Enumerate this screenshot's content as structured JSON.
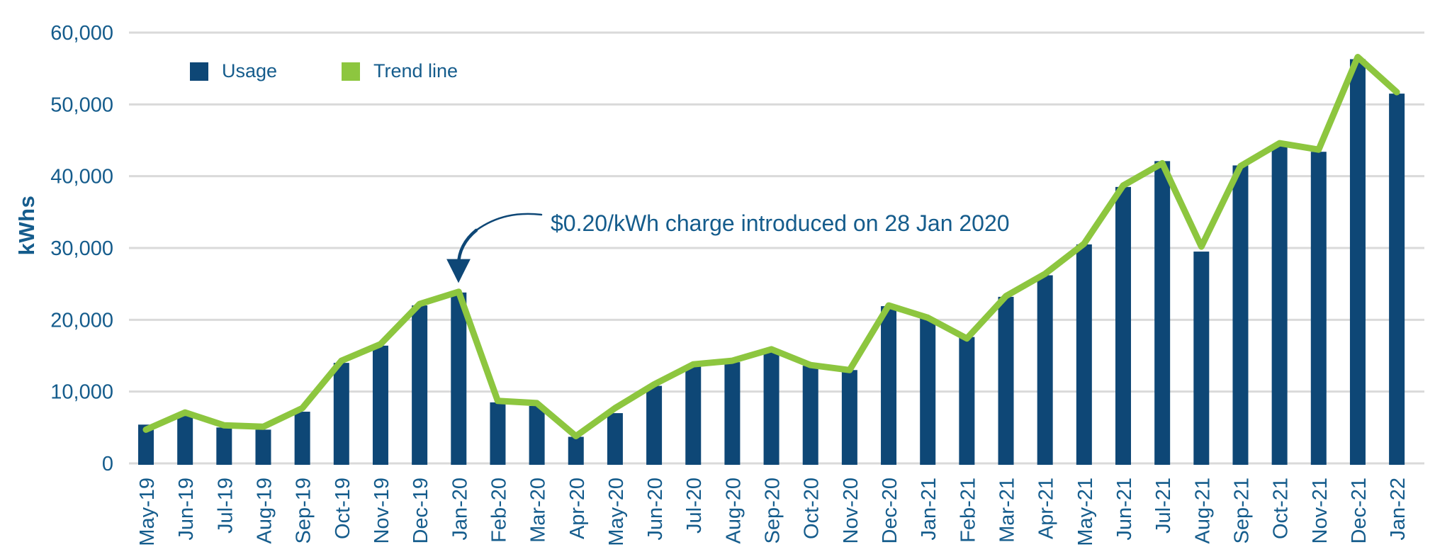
{
  "colors": {
    "navy": "#0E4776",
    "green": "#8DC63F",
    "grid": "#DADADA",
    "text": "#155C8C"
  },
  "y_axis": {
    "title": "kWhs",
    "tick_labels": [
      "0",
      "10,000",
      "20,000",
      "30,000",
      "40,000",
      "50,000",
      "60,000"
    ]
  },
  "chart_data": {
    "type": "bar",
    "title": "",
    "xlabel": "",
    "ylabel": "kWhs",
    "ylim": [
      0,
      60000
    ],
    "grid": "horizontal-only",
    "legend_position": "top-left",
    "categories": [
      "May-19",
      "Jun-19",
      "Jul-19",
      "Aug-19",
      "Sep-19",
      "Oct-19",
      "Nov-19",
      "Dec-19",
      "Jan-20",
      "Feb-20",
      "Mar-20",
      "Apr-20",
      "May-20",
      "Jun-20",
      "Jul-20",
      "Aug-20",
      "Sep-20",
      "Oct-20",
      "Nov-20",
      "Dec-20",
      "Jan-21",
      "Feb-21",
      "Mar-21",
      "Apr-21",
      "May-21",
      "Jun-21",
      "Jul-21",
      "Aug-21",
      "Sep-21",
      "Oct-21",
      "Nov-21",
      "Dec-21",
      "Jan-22"
    ],
    "series": [
      {
        "name": "Usage",
        "type": "bar",
        "values": [
          5400,
          6600,
          5000,
          4700,
          7200,
          14000,
          16400,
          22000,
          23800,
          8500,
          8000,
          3700,
          7000,
          10800,
          13600,
          14100,
          15500,
          13600,
          13000,
          21900,
          20200,
          17600,
          23200,
          26200,
          30500,
          38500,
          42100,
          29500,
          41500,
          44400,
          43400,
          56300,
          51500
        ]
      },
      {
        "name": "Trend line",
        "type": "line",
        "values": [
          4700,
          7100,
          5300,
          5100,
          7700,
          14300,
          16600,
          22200,
          23900,
          8700,
          8400,
          3800,
          7700,
          11000,
          13800,
          14300,
          15900,
          13700,
          13000,
          22000,
          20300,
          17400,
          23300,
          26400,
          30600,
          38700,
          41800,
          30200,
          41400,
          44600,
          43700,
          56600,
          51700
        ]
      }
    ],
    "annotation": {
      "text": "$0.20/kWh charge introduced on 28 Jan 2020",
      "target_category": "Jan-20"
    }
  }
}
